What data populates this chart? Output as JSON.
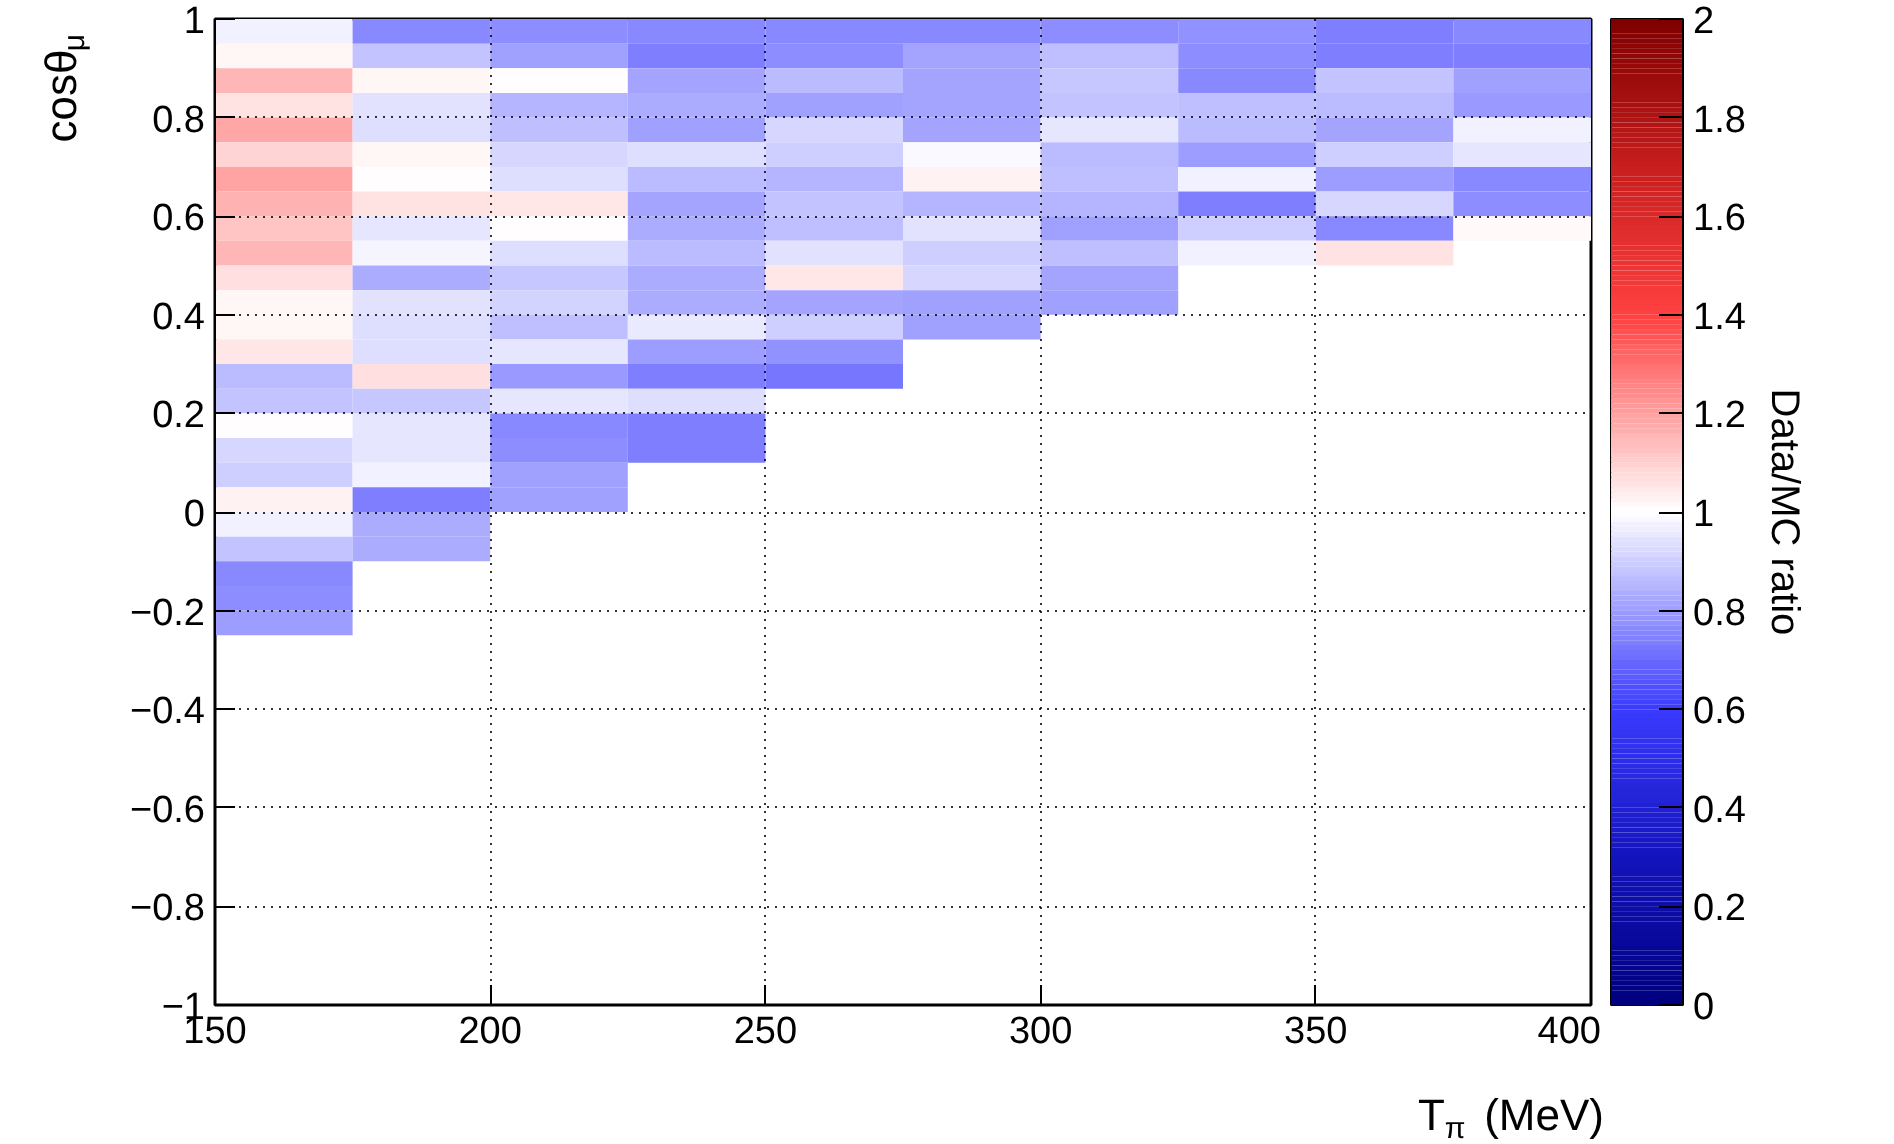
{
  "chart_data": {
    "type": "heatmap",
    "xlabel": "T$_{π}$ (MeV)",
    "ylabel": "cosθ$_{μ}$",
    "clabel": "Data/MC ratio",
    "x": [
      162.5,
      187.5,
      212.5,
      237.5,
      262.5,
      287.5,
      312.5,
      337.5,
      362.5,
      387.5
    ],
    "y": [
      0.975,
      0.925,
      0.875,
      0.825,
      0.775,
      0.725,
      0.675,
      0.625,
      0.575,
      0.525,
      0.475,
      0.425,
      0.375,
      0.325,
      0.275,
      0.225,
      0.175,
      0.125,
      0.075,
      0.025,
      -0.025,
      -0.075,
      -0.125,
      -0.175,
      -0.225
    ],
    "cells": [
      [
        0.97,
        0.76,
        0.77,
        0.76,
        0.76,
        0.76,
        0.77,
        0.78,
        0.74,
        0.76
      ],
      [
        1.02,
        0.88,
        0.81,
        0.74,
        0.77,
        0.82,
        0.87,
        0.77,
        0.74,
        0.74
      ],
      [
        1.15,
        1.02,
        1.0,
        0.82,
        0.86,
        0.82,
        0.89,
        0.76,
        0.88,
        0.81
      ],
      [
        1.06,
        0.94,
        0.85,
        0.83,
        0.81,
        0.82,
        0.88,
        0.87,
        0.86,
        0.79
      ],
      [
        1.18,
        0.93,
        0.87,
        0.81,
        0.92,
        0.82,
        0.95,
        0.86,
        0.82,
        0.97
      ],
      [
        1.09,
        1.02,
        0.92,
        0.93,
        0.9,
        0.99,
        0.86,
        0.8,
        0.9,
        0.95
      ],
      [
        1.19,
        1.0,
        0.93,
        0.86,
        0.85,
        1.03,
        0.87,
        0.97,
        0.8,
        0.76
      ],
      [
        1.16,
        1.06,
        1.05,
        0.82,
        0.88,
        0.85,
        0.85,
        0.74,
        0.92,
        0.77
      ],
      [
        1.12,
        0.95,
        1.0,
        0.83,
        0.87,
        0.94,
        0.81,
        0.9,
        0.76,
        1.01
      ],
      [
        1.15,
        0.98,
        0.93,
        0.86,
        0.94,
        0.9,
        0.87,
        0.97,
        1.06,
        null
      ],
      [
        1.07,
        0.83,
        0.89,
        0.83,
        1.05,
        0.92,
        0.82,
        null,
        null,
        null
      ],
      [
        1.02,
        0.94,
        0.91,
        0.83,
        0.82,
        0.81,
        0.81,
        null,
        null,
        null
      ],
      [
        1.02,
        0.93,
        0.87,
        0.96,
        0.9,
        0.81,
        null,
        null,
        null,
        null
      ],
      [
        1.05,
        0.93,
        0.95,
        0.8,
        0.78,
        null,
        null,
        null,
        null,
        null
      ],
      [
        0.86,
        1.07,
        0.79,
        0.74,
        0.72,
        null,
        null,
        null,
        null,
        null
      ],
      [
        0.88,
        0.89,
        0.95,
        0.93,
        null,
        null,
        null,
        null,
        null,
        null
      ],
      [
        1.0,
        0.95,
        0.76,
        0.74,
        null,
        null,
        null,
        null,
        null,
        null
      ],
      [
        0.92,
        0.95,
        0.77,
        0.74,
        null,
        null,
        null,
        null,
        null,
        null
      ],
      [
        0.9,
        0.97,
        0.81,
        null,
        null,
        null,
        null,
        null,
        null,
        null
      ],
      [
        1.03,
        0.74,
        0.81,
        null,
        null,
        null,
        null,
        null,
        null,
        null
      ],
      [
        0.97,
        0.83,
        null,
        null,
        null,
        null,
        null,
        null,
        null,
        null
      ],
      [
        0.88,
        0.83,
        null,
        null,
        null,
        null,
        null,
        null,
        null,
        null
      ],
      [
        0.76,
        null,
        null,
        null,
        null,
        null,
        null,
        null,
        null,
        null
      ],
      [
        0.77,
        null,
        null,
        null,
        null,
        null,
        null,
        null,
        null,
        null
      ],
      [
        0.8,
        null,
        null,
        null,
        null,
        null,
        null,
        null,
        null,
        null
      ]
    ],
    "xlim": [
      150,
      400
    ],
    "ylim": [
      -1,
      1
    ],
    "xticks": [
      150,
      200,
      250,
      300,
      350,
      400
    ],
    "yticks": [
      {
        "value": -1,
        "label": "−1"
      },
      {
        "value": -0.8,
        "label": "−0.8"
      },
      {
        "value": -0.6,
        "label": "−0.6"
      },
      {
        "value": -0.4,
        "label": "−0.4"
      },
      {
        "value": -0.2,
        "label": "−0.2"
      },
      {
        "value": 0,
        "label": "0"
      },
      {
        "value": 0.2,
        "label": "0.2"
      },
      {
        "value": 0.4,
        "label": "0.4"
      },
      {
        "value": 0.6,
        "label": "0.6"
      },
      {
        "value": 0.8,
        "label": "0.8"
      },
      {
        "value": 1,
        "label": "1"
      }
    ],
    "clim": [
      0,
      2
    ],
    "cticks": [
      0,
      0.2,
      0.4,
      0.6,
      0.8,
      1,
      1.2,
      1.4,
      1.6,
      1.8,
      2
    ],
    "grid": true
  }
}
